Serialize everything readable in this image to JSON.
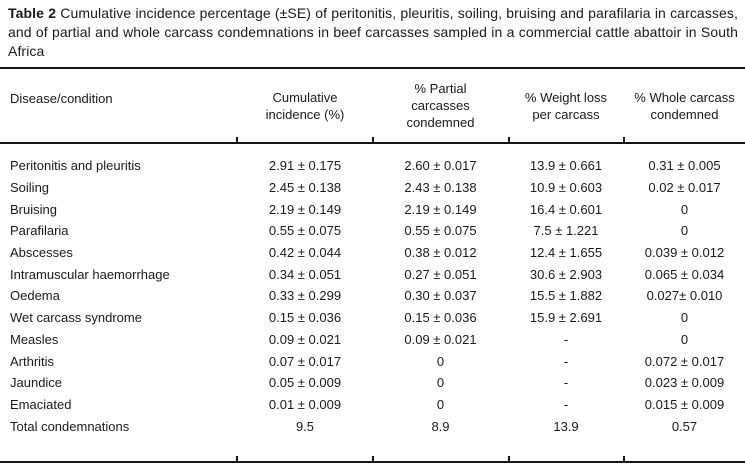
{
  "title": {
    "label": "Table 2",
    "text": "Cumulative incidence percentage (±SE) of peritonitis, pleuritis, soiling, bruising and parafilaria in carcasses, and of partial and whole carcass condemnations in beef carcasses sampled in a commercial cattle abattoir in South Africa"
  },
  "table": {
    "columns": [
      "Disease/condition",
      "Cumulative incidence (%)",
      "% Partial carcasses condemned",
      "% Weight loss per carcass",
      "% Whole carcass condemned"
    ],
    "rows": [
      [
        "Peritonitis and pleuritis",
        "2.91 ± 0.175",
        "2.60 ± 0.017",
        "13.9 ± 0.661",
        "0.31 ± 0.005"
      ],
      [
        "Soiling",
        "2.45 ± 0.138",
        "2.43 ± 0.138",
        "10.9 ± 0.603",
        "0.02 ± 0.017"
      ],
      [
        "Bruising",
        "2.19 ± 0.149",
        "2.19 ± 0.149",
        "16.4 ± 0.601",
        "0"
      ],
      [
        "Parafilaria",
        "0.55 ± 0.075",
        "0.55 ± 0.075",
        "7.5 ± 1.221",
        "0"
      ],
      [
        "Abscesses",
        "0.42 ± 0.044",
        "0.38 ± 0.012",
        "12.4 ± 1.655",
        "0.039 ± 0.012"
      ],
      [
        "Intramuscular haemorrhage",
        "0.34 ± 0.051",
        "0.27 ± 0.051",
        "30.6 ± 2.903",
        "0.065 ± 0.034"
      ],
      [
        "Oedema",
        "0.33 ± 0.299",
        "0.30 ± 0.037",
        "15.5 ± 1.882",
        "0.027± 0.010"
      ],
      [
        "Wet carcass syndrome",
        "0.15 ± 0.036",
        "0.15 ± 0.036",
        "15.9 ± 2.691",
        "0"
      ],
      [
        "Measles",
        "0.09 ± 0.021",
        "0.09 ± 0.021",
        "-",
        "0"
      ],
      [
        "Arthritis",
        "0.07 ± 0.017",
        "0",
        "-",
        "0.072 ± 0.017"
      ],
      [
        "Jaundice",
        "0.05 ± 0.009",
        "0",
        "-",
        "0.023 ± 0.009"
      ],
      [
        "Emaciated",
        "0.01 ± 0.009",
        "0",
        "-",
        "0.015 ± 0.009"
      ],
      [
        "Total condemnations",
        "9.5",
        "8.9",
        "13.9",
        "0.57"
      ]
    ]
  },
  "chart_data": {
    "type": "table",
    "title": "Table 2 Cumulative incidence percentage (±SE) of peritonitis, pleuritis, soiling, bruising and parafilaria in carcasses, and of partial and whole carcass condemnations in beef carcasses sampled in a commercial cattle abattoir in South Africa",
    "columns": [
      "Disease/condition",
      "Cumulative incidence (%)",
      "% Partial carcasses condemned",
      "% Weight loss per carcass",
      "% Whole carcass condemned"
    ],
    "rows": [
      [
        "Peritonitis and pleuritis",
        "2.91 ± 0.175",
        "2.60 ± 0.017",
        "13.9 ± 0.661",
        "0.31 ± 0.005"
      ],
      [
        "Soiling",
        "2.45 ± 0.138",
        "2.43 ± 0.138",
        "10.9 ± 0.603",
        "0.02 ± 0.017"
      ],
      [
        "Bruising",
        "2.19 ± 0.149",
        "2.19 ± 0.149",
        "16.4 ± 0.601",
        "0"
      ],
      [
        "Parafilaria",
        "0.55 ± 0.075",
        "0.55 ± 0.075",
        "7.5 ± 1.221",
        "0"
      ],
      [
        "Abscesses",
        "0.42 ± 0.044",
        "0.38 ± 0.012",
        "12.4 ± 1.655",
        "0.039 ± 0.012"
      ],
      [
        "Intramuscular haemorrhage",
        "0.34 ± 0.051",
        "0.27 ± 0.051",
        "30.6 ± 2.903",
        "0.065 ± 0.034"
      ],
      [
        "Oedema",
        "0.33 ± 0.299",
        "0.30 ± 0.037",
        "15.5 ± 1.882",
        "0.027± 0.010"
      ],
      [
        "Wet carcass syndrome",
        "0.15 ± 0.036",
        "0.15 ± 0.036",
        "15.9 ± 2.691",
        "0"
      ],
      [
        "Measles",
        "0.09 ± 0.021",
        "0.09 ± 0.021",
        "-",
        "0"
      ],
      [
        "Arthritis",
        "0.07 ± 0.017",
        "0",
        "-",
        "0.072 ± 0.017"
      ],
      [
        "Jaundice",
        "0.05 ± 0.009",
        "0",
        "-",
        "0.023 ± 0.009"
      ],
      [
        "Emaciated",
        "0.01 ± 0.009",
        "0",
        "-",
        "0.015 ± 0.009"
      ],
      [
        "Total condemnations",
        "9.5",
        "8.9",
        "13.9",
        "0.57"
      ]
    ]
  },
  "colors": {
    "background": "#ffffff",
    "text": "#1a1a1a",
    "rule": "#161616"
  }
}
